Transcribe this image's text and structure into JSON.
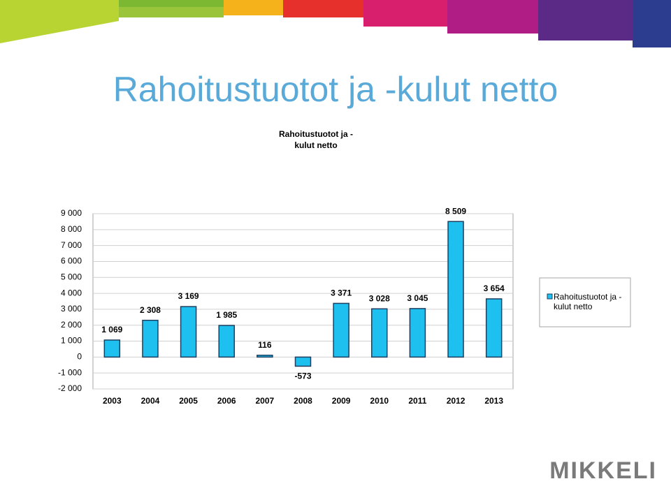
{
  "slide_title": "Rahoitustuotot ja -kulut netto",
  "logo": "MIKKELI",
  "chart_data": {
    "type": "bar",
    "title": "Rahoitustuotot ja -kulut netto",
    "categories": [
      "2003",
      "2004",
      "2005",
      "2006",
      "2007",
      "2008",
      "2009",
      "2010",
      "2011",
      "2012",
      "2013"
    ],
    "series": [
      {
        "name": "Rahoitustuotot ja -kulut netto",
        "color": "#1ec0f0",
        "values": [
          1069,
          2308,
          3169,
          1985,
          116,
          -573,
          3371,
          3028,
          3045,
          8509,
          3654
        ],
        "value_labels": [
          "1 069",
          "2 308",
          "3 169",
          "1 985",
          "116",
          "-573",
          "3 371",
          "3 028",
          "3 045",
          "8 509",
          "3 654"
        ]
      }
    ],
    "ylim": [
      -2000,
      9000
    ],
    "yticks": [
      {
        "value": -2000,
        "label": "-2 000"
      },
      {
        "value": -1000,
        "label": "-1 000"
      },
      0,
      {
        "value": 1000,
        "label": "1 000"
      },
      {
        "value": 2000,
        "label": "2 000"
      },
      {
        "value": 3000,
        "label": "3 000"
      },
      {
        "value": 4000,
        "label": "4 000"
      },
      {
        "value": 5000,
        "label": "5 000"
      },
      {
        "value": 6000,
        "label": "6 000"
      },
      {
        "value": 7000,
        "label": "7 000"
      },
      {
        "value": 8000,
        "label": "8 000"
      },
      {
        "value": 9000,
        "label": "9 000"
      }
    ],
    "grid": true,
    "legend": "right"
  }
}
